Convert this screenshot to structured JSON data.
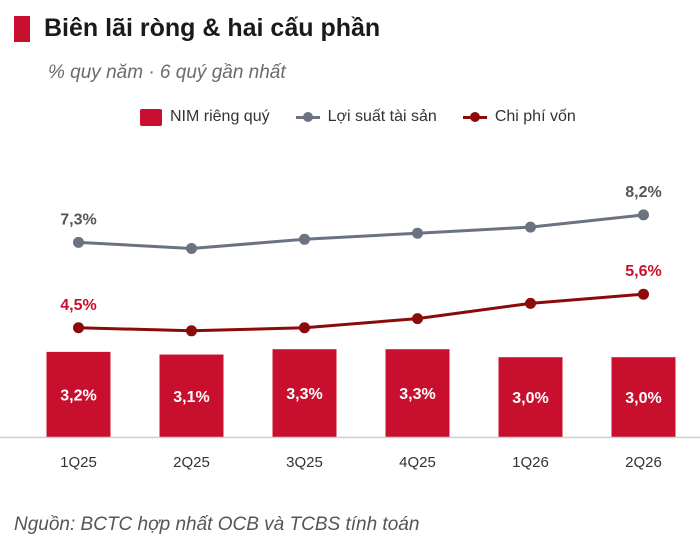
{
  "header": {
    "title": "Biên lãi ròng & hai cấu phần",
    "subtitle": "% quy năm · 6 quý gần nhất"
  },
  "legend": {
    "nim": "NIM riêng quý",
    "yield": "Lợi suất tài sản",
    "cost": "Chi phí vốn"
  },
  "source": "Nguồn: BCTC hợp nhất OCB và TCBS tính toán",
  "colors": {
    "nim": "#c8102e",
    "yield": "#6b7280",
    "cost": "#8b0a0a",
    "axis": "#cfcfcf"
  },
  "chart_data": {
    "type": "bar+line",
    "categories": [
      "1Q25",
      "2Q25",
      "3Q25",
      "4Q25",
      "1Q26",
      "2Q26"
    ],
    "bars": {
      "name": "NIM riêng quý",
      "values": [
        3.2,
        3.1,
        3.3,
        3.3,
        3.0,
        3.0
      ],
      "labels": [
        "3,2%",
        "3,1%",
        "3,3%",
        "3,3%",
        "3,0%",
        "3,0%"
      ]
    },
    "series": [
      {
        "name": "Lợi suất tài sản",
        "values": [
          7.3,
          7.1,
          7.4,
          7.6,
          7.8,
          8.2
        ],
        "labels": [
          "7,3%",
          "",
          "",
          "",
          "",
          "8,2%"
        ]
      },
      {
        "name": "Chi phí vốn",
        "values": [
          4.5,
          4.4,
          4.5,
          4.8,
          5.3,
          5.6
        ],
        "labels": [
          "4,5%",
          "",
          "",
          "",
          "",
          "5,6%"
        ]
      }
    ],
    "grid": false,
    "legend_position": "top"
  }
}
